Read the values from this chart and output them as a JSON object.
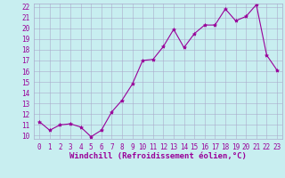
{
  "x": [
    0,
    1,
    2,
    3,
    4,
    5,
    6,
    7,
    8,
    9,
    10,
    11,
    12,
    13,
    14,
    15,
    16,
    17,
    18,
    19,
    20,
    21,
    22,
    23
  ],
  "y": [
    11.3,
    10.5,
    11.0,
    11.1,
    10.8,
    9.9,
    10.5,
    12.2,
    13.3,
    14.8,
    17.0,
    17.1,
    18.3,
    19.9,
    18.2,
    19.5,
    20.3,
    20.3,
    21.8,
    20.7,
    21.1,
    22.2,
    17.5,
    16.1
  ],
  "line_color": "#990099",
  "marker": "*",
  "marker_size": 3,
  "bg_color": "#c8eef0",
  "grid_color": "#aaaacc",
  "xlabel": "Windchill (Refroidissement éolien,°C)",
  "xlabel_color": "#990099",
  "tick_color": "#990099",
  "ylim": [
    9.7,
    22.3
  ],
  "xlim": [
    -0.5,
    23.5
  ],
  "yticks": [
    10,
    11,
    12,
    13,
    14,
    15,
    16,
    17,
    18,
    19,
    20,
    21,
    22
  ],
  "xticks": [
    0,
    1,
    2,
    3,
    4,
    5,
    6,
    7,
    8,
    9,
    10,
    11,
    12,
    13,
    14,
    15,
    16,
    17,
    18,
    19,
    20,
    21,
    22,
    23
  ],
  "tick_fontsize": 5.5,
  "xlabel_fontsize": 6.5,
  "linewidth": 0.8
}
